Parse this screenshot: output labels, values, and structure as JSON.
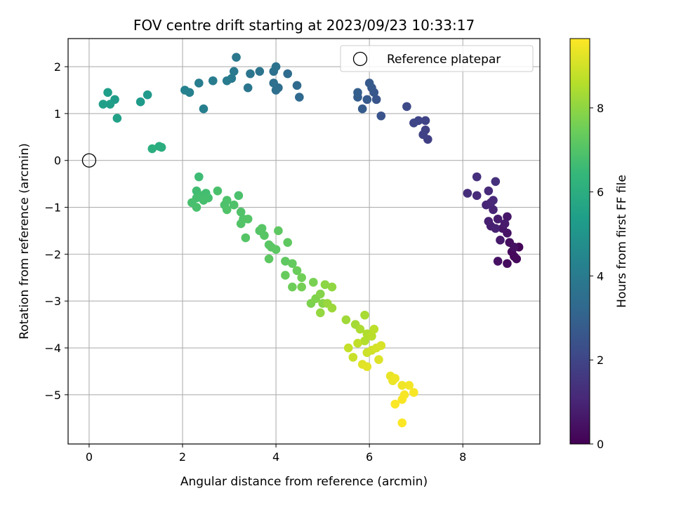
{
  "chart_data": {
    "type": "scatter",
    "title": "FOV centre drift starting at 2023/09/23 10:33:17",
    "xlabel": "Angular distance from reference (arcmin)",
    "ylabel": "Rotation from reference (arcmin)",
    "xlim": [
      -0.45,
      9.65
    ],
    "ylim": [
      -6.05,
      2.6
    ],
    "xticks": [
      0,
      2,
      4,
      6,
      8
    ],
    "yticks": [
      -5,
      -4,
      -3,
      -2,
      -1,
      0,
      1,
      2
    ],
    "grid": true,
    "legend": {
      "position": "top-right",
      "entries": [
        "Reference platepar"
      ]
    },
    "reference_point": {
      "name": "Reference platepar",
      "x": 0,
      "y": 0
    },
    "colorbar": {
      "label": "Hours from first FF file",
      "range": [
        0,
        9.65
      ],
      "ticks": [
        0,
        2,
        4,
        6,
        8
      ],
      "colormap": "viridis"
    },
    "colormap_stops": [
      "#440154",
      "#482878",
      "#3e4a89",
      "#31688e",
      "#26828e",
      "#1f9e89",
      "#35b779",
      "#6ece58",
      "#b5de2b",
      "#fde725"
    ],
    "points": [
      [
        9.2,
        -1.85,
        0.1
      ],
      [
        9.1,
        -2.05,
        0.15
      ],
      [
        9.05,
        -1.95,
        0.2
      ],
      [
        9.15,
        -2.1,
        0.25
      ],
      [
        8.95,
        -2.2,
        0.3
      ],
      [
        9.0,
        -1.75,
        0.35
      ],
      [
        9.1,
        -1.85,
        0.4
      ],
      [
        8.75,
        -2.15,
        0.45
      ],
      [
        8.95,
        -1.55,
        0.5
      ],
      [
        8.85,
        -1.45,
        0.55
      ],
      [
        8.95,
        -1.2,
        0.6
      ],
      [
        8.8,
        -1.7,
        0.65
      ],
      [
        8.9,
        -1.35,
        0.7
      ],
      [
        8.75,
        -1.25,
        0.75
      ],
      [
        8.6,
        -1.4,
        0.8
      ],
      [
        8.55,
        -1.3,
        0.85
      ],
      [
        8.7,
        -1.45,
        0.9
      ],
      [
        8.65,
        -1.05,
        0.95
      ],
      [
        8.5,
        -0.95,
        1.0
      ],
      [
        8.6,
        -0.9,
        1.05
      ],
      [
        8.65,
        -0.85,
        1.1
      ],
      [
        8.55,
        -0.65,
        1.15
      ],
      [
        8.3,
        -0.75,
        1.2
      ],
      [
        8.1,
        -0.7,
        1.25
      ],
      [
        8.3,
        -0.35,
        1.3
      ],
      [
        8.7,
        -0.45,
        1.35
      ],
      [
        7.25,
        0.45,
        1.8
      ],
      [
        7.2,
        0.65,
        1.85
      ],
      [
        7.15,
        0.55,
        1.9
      ],
      [
        7.2,
        0.85,
        1.95
      ],
      [
        7.05,
        0.85,
        2.0
      ],
      [
        6.95,
        0.8,
        2.05
      ],
      [
        6.8,
        1.15,
        2.1
      ],
      [
        6.25,
        0.95,
        2.5
      ],
      [
        6.15,
        1.3,
        2.55
      ],
      [
        6.1,
        1.45,
        2.6
      ],
      [
        6.05,
        1.55,
        2.65
      ],
      [
        6.0,
        1.65,
        2.7
      ],
      [
        5.95,
        1.3,
        2.75
      ],
      [
        5.85,
        1.1,
        2.8
      ],
      [
        5.75,
        1.35,
        2.85
      ],
      [
        5.75,
        1.45,
        2.9
      ],
      [
        4.5,
        1.35,
        3.3
      ],
      [
        4.45,
        1.6,
        3.35
      ],
      [
        4.25,
        1.85,
        3.4
      ],
      [
        4.05,
        1.55,
        3.45
      ],
      [
        4.0,
        1.5,
        3.5
      ],
      [
        3.95,
        1.65,
        3.55
      ],
      [
        3.95,
        1.9,
        3.6
      ],
      [
        4.0,
        2.0,
        3.65
      ],
      [
        3.65,
        1.9,
        3.7
      ],
      [
        3.45,
        1.85,
        3.75
      ],
      [
        3.4,
        1.55,
        3.8
      ],
      [
        3.15,
        2.2,
        3.85
      ],
      [
        3.1,
        1.9,
        3.9
      ],
      [
        3.05,
        1.75,
        3.95
      ],
      [
        2.95,
        1.7,
        4.0
      ],
      [
        2.65,
        1.7,
        4.05
      ],
      [
        2.35,
        1.65,
        4.1
      ],
      [
        2.45,
        1.1,
        4.15
      ],
      [
        2.15,
        1.45,
        4.2
      ],
      [
        2.05,
        1.5,
        4.25
      ],
      [
        1.25,
        1.4,
        5.2
      ],
      [
        1.1,
        1.25,
        5.25
      ],
      [
        0.55,
        1.3,
        5.3
      ],
      [
        0.4,
        1.45,
        5.35
      ],
      [
        0.45,
        1.2,
        5.4
      ],
      [
        0.3,
        1.2,
        5.45
      ],
      [
        0.6,
        0.9,
        5.5
      ],
      [
        1.5,
        0.3,
        5.95
      ],
      [
        1.55,
        0.28,
        6.0
      ],
      [
        1.35,
        0.25,
        6.05
      ],
      [
        2.35,
        -0.35,
        6.6
      ],
      [
        2.3,
        -0.65,
        6.65
      ],
      [
        2.5,
        -0.7,
        6.7
      ],
      [
        2.4,
        -0.75,
        6.72
      ],
      [
        2.3,
        -0.8,
        6.74
      ],
      [
        2.55,
        -0.8,
        6.76
      ],
      [
        2.45,
        -0.85,
        6.78
      ],
      [
        2.2,
        -0.9,
        6.8
      ],
      [
        2.3,
        -1.0,
        6.82
      ],
      [
        2.75,
        -0.65,
        6.84
      ],
      [
        3.2,
        -0.75,
        6.86
      ],
      [
        2.9,
        -0.95,
        6.88
      ],
      [
        2.95,
        -0.85,
        6.9
      ],
      [
        3.1,
        -0.95,
        6.92
      ],
      [
        2.95,
        -1.05,
        6.94
      ],
      [
        3.25,
        -1.1,
        6.96
      ],
      [
        3.3,
        -1.25,
        6.98
      ],
      [
        3.25,
        -1.35,
        7.0
      ],
      [
        3.4,
        -1.25,
        7.02
      ],
      [
        3.35,
        -1.65,
        7.04
      ],
      [
        3.65,
        -1.5,
        7.06
      ],
      [
        3.7,
        -1.45,
        7.08
      ],
      [
        3.75,
        -1.6,
        7.1
      ],
      [
        3.85,
        -1.8,
        7.12
      ],
      [
        3.9,
        -1.85,
        7.14
      ],
      [
        4.0,
        -1.9,
        7.16
      ],
      [
        3.85,
        -2.1,
        7.18
      ],
      [
        4.05,
        -1.5,
        7.2
      ],
      [
        4.25,
        -1.75,
        7.22
      ],
      [
        4.2,
        -2.15,
        7.24
      ],
      [
        4.35,
        -2.2,
        7.3
      ],
      [
        4.2,
        -2.45,
        7.36
      ],
      [
        4.45,
        -2.35,
        7.42
      ],
      [
        4.35,
        -2.7,
        7.48
      ],
      [
        4.55,
        -2.5,
        7.54
      ],
      [
        4.55,
        -2.7,
        7.6
      ],
      [
        4.8,
        -2.6,
        7.66
      ],
      [
        4.75,
        -3.05,
        7.72
      ],
      [
        4.85,
        -2.95,
        7.78
      ],
      [
        4.95,
        -2.85,
        7.84
      ],
      [
        5.0,
        -3.05,
        7.9
      ],
      [
        5.05,
        -2.65,
        7.96
      ],
      [
        5.2,
        -2.7,
        8.02
      ],
      [
        4.95,
        -3.25,
        8.08
      ],
      [
        5.1,
        -3.05,
        8.14
      ],
      [
        5.2,
        -3.15,
        8.2
      ],
      [
        5.5,
        -3.4,
        8.26
      ],
      [
        5.7,
        -3.5,
        8.32
      ],
      [
        5.9,
        -3.3,
        8.38
      ],
      [
        5.8,
        -3.6,
        8.44
      ],
      [
        5.95,
        -3.7,
        8.5
      ],
      [
        5.9,
        -3.85,
        8.56
      ],
      [
        6.05,
        -3.75,
        8.62
      ],
      [
        6.1,
        -3.6,
        8.68
      ],
      [
        5.75,
        -3.9,
        8.74
      ],
      [
        5.55,
        -4.0,
        8.8
      ],
      [
        5.65,
        -4.2,
        8.86
      ],
      [
        5.95,
        -4.1,
        8.92
      ],
      [
        6.05,
        -4.05,
        8.98
      ],
      [
        6.15,
        -4.0,
        9.04
      ],
      [
        6.25,
        -3.95,
        9.1
      ],
      [
        6.2,
        -4.25,
        9.16
      ],
      [
        5.85,
        -4.35,
        9.22
      ],
      [
        5.95,
        -4.4,
        9.28
      ],
      [
        6.45,
        -4.6,
        9.34
      ],
      [
        6.5,
        -4.7,
        9.38
      ],
      [
        6.55,
        -4.65,
        9.42
      ],
      [
        6.7,
        -4.8,
        9.46
      ],
      [
        6.85,
        -4.8,
        9.5
      ],
      [
        6.75,
        -5.0,
        9.54
      ],
      [
        6.95,
        -4.95,
        9.56
      ],
      [
        6.7,
        -5.1,
        9.58
      ],
      [
        6.55,
        -5.2,
        9.6
      ],
      [
        6.7,
        -5.6,
        9.62
      ]
    ]
  }
}
